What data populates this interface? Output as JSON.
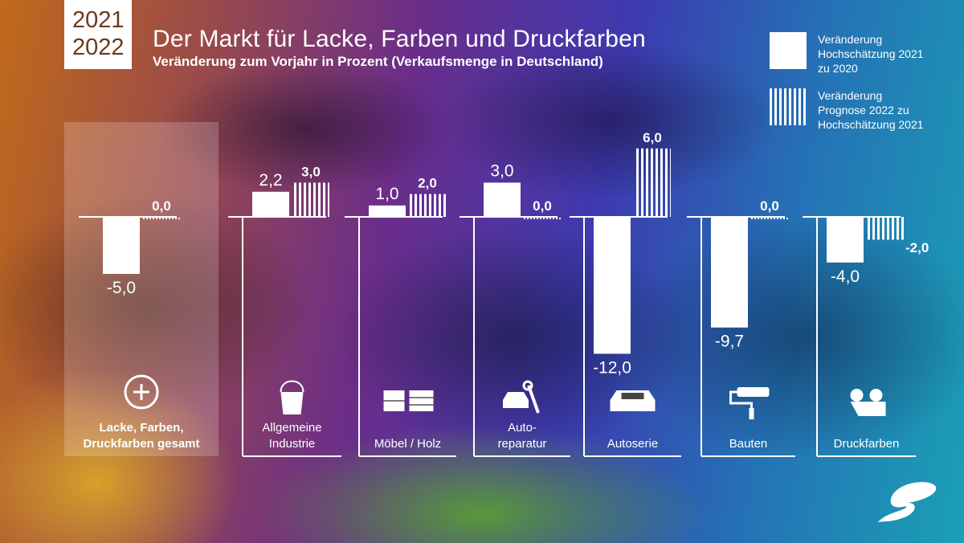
{
  "header": {
    "year1": "2021",
    "year2": "2022",
    "title": "Der Markt für Lacke, Farben und Druckfarben",
    "subtitle": "Veränderung zum Vorjahr in Prozent (Verkaufsmenge in Deutschland)"
  },
  "legend": [
    {
      "type": "solid",
      "label": "Veränderung Hochschätzung 2021 zu 2020",
      "lines": [
        "Veränderung",
        "Hochschätzung 2021",
        "zu 2020"
      ]
    },
    {
      "type": "hatched",
      "label": "Veränderung Prognose 2022 zu Hochschätzung 2021",
      "lines": [
        "Veränderung",
        "Prognose 2022 zu",
        "Hochschätzung 2021"
      ]
    }
  ],
  "chart_data": {
    "type": "bar",
    "title": "Der Markt für Lacke, Farben und Druckfarben",
    "ylabel": "Veränderung zum Vorjahr in Prozent",
    "categories": [
      "Lacke, Farben, Druckfarben gesamt",
      "Allgemeine Industrie",
      "Möbel / Holz",
      "Autoreparatur",
      "Autoserie",
      "Bauten",
      "Druckfarben"
    ],
    "category_lines": [
      [
        "Lacke, Farben,",
        "Druckfarben gesamt"
      ],
      [
        "Allgemeine",
        "Industrie"
      ],
      [
        "Möbel / Holz"
      ],
      [
        "Auto-",
        "reparatur"
      ],
      [
        "Autoserie"
      ],
      [
        "Bauten"
      ],
      [
        "Druckfarben"
      ]
    ],
    "icons": [
      "plus-circle-icon",
      "paint-bucket-icon",
      "furniture-icon",
      "car-wrench-icon",
      "car-icon",
      "paint-roller-icon",
      "printing-rolls-icon"
    ],
    "series": [
      {
        "name": "Veränderung Hochschätzung 2021 zu 2020",
        "values": [
          -5.0,
          2.2,
          1.0,
          3.0,
          -12.0,
          -9.7,
          -4.0
        ],
        "labels": [
          "-5,0",
          "2,2",
          "1,0",
          "3,0",
          "-12,0",
          "-9,7",
          "-4,0"
        ]
      },
      {
        "name": "Veränderung Prognose 2022 zu Hochschätzung 2021",
        "values": [
          0.0,
          3.0,
          2.0,
          0.0,
          6.0,
          0.0,
          -2.0
        ],
        "labels": [
          "0,0",
          "3,0",
          "2,0",
          "0,0",
          "6,0",
          "0,0",
          "-2,0"
        ]
      }
    ]
  }
}
